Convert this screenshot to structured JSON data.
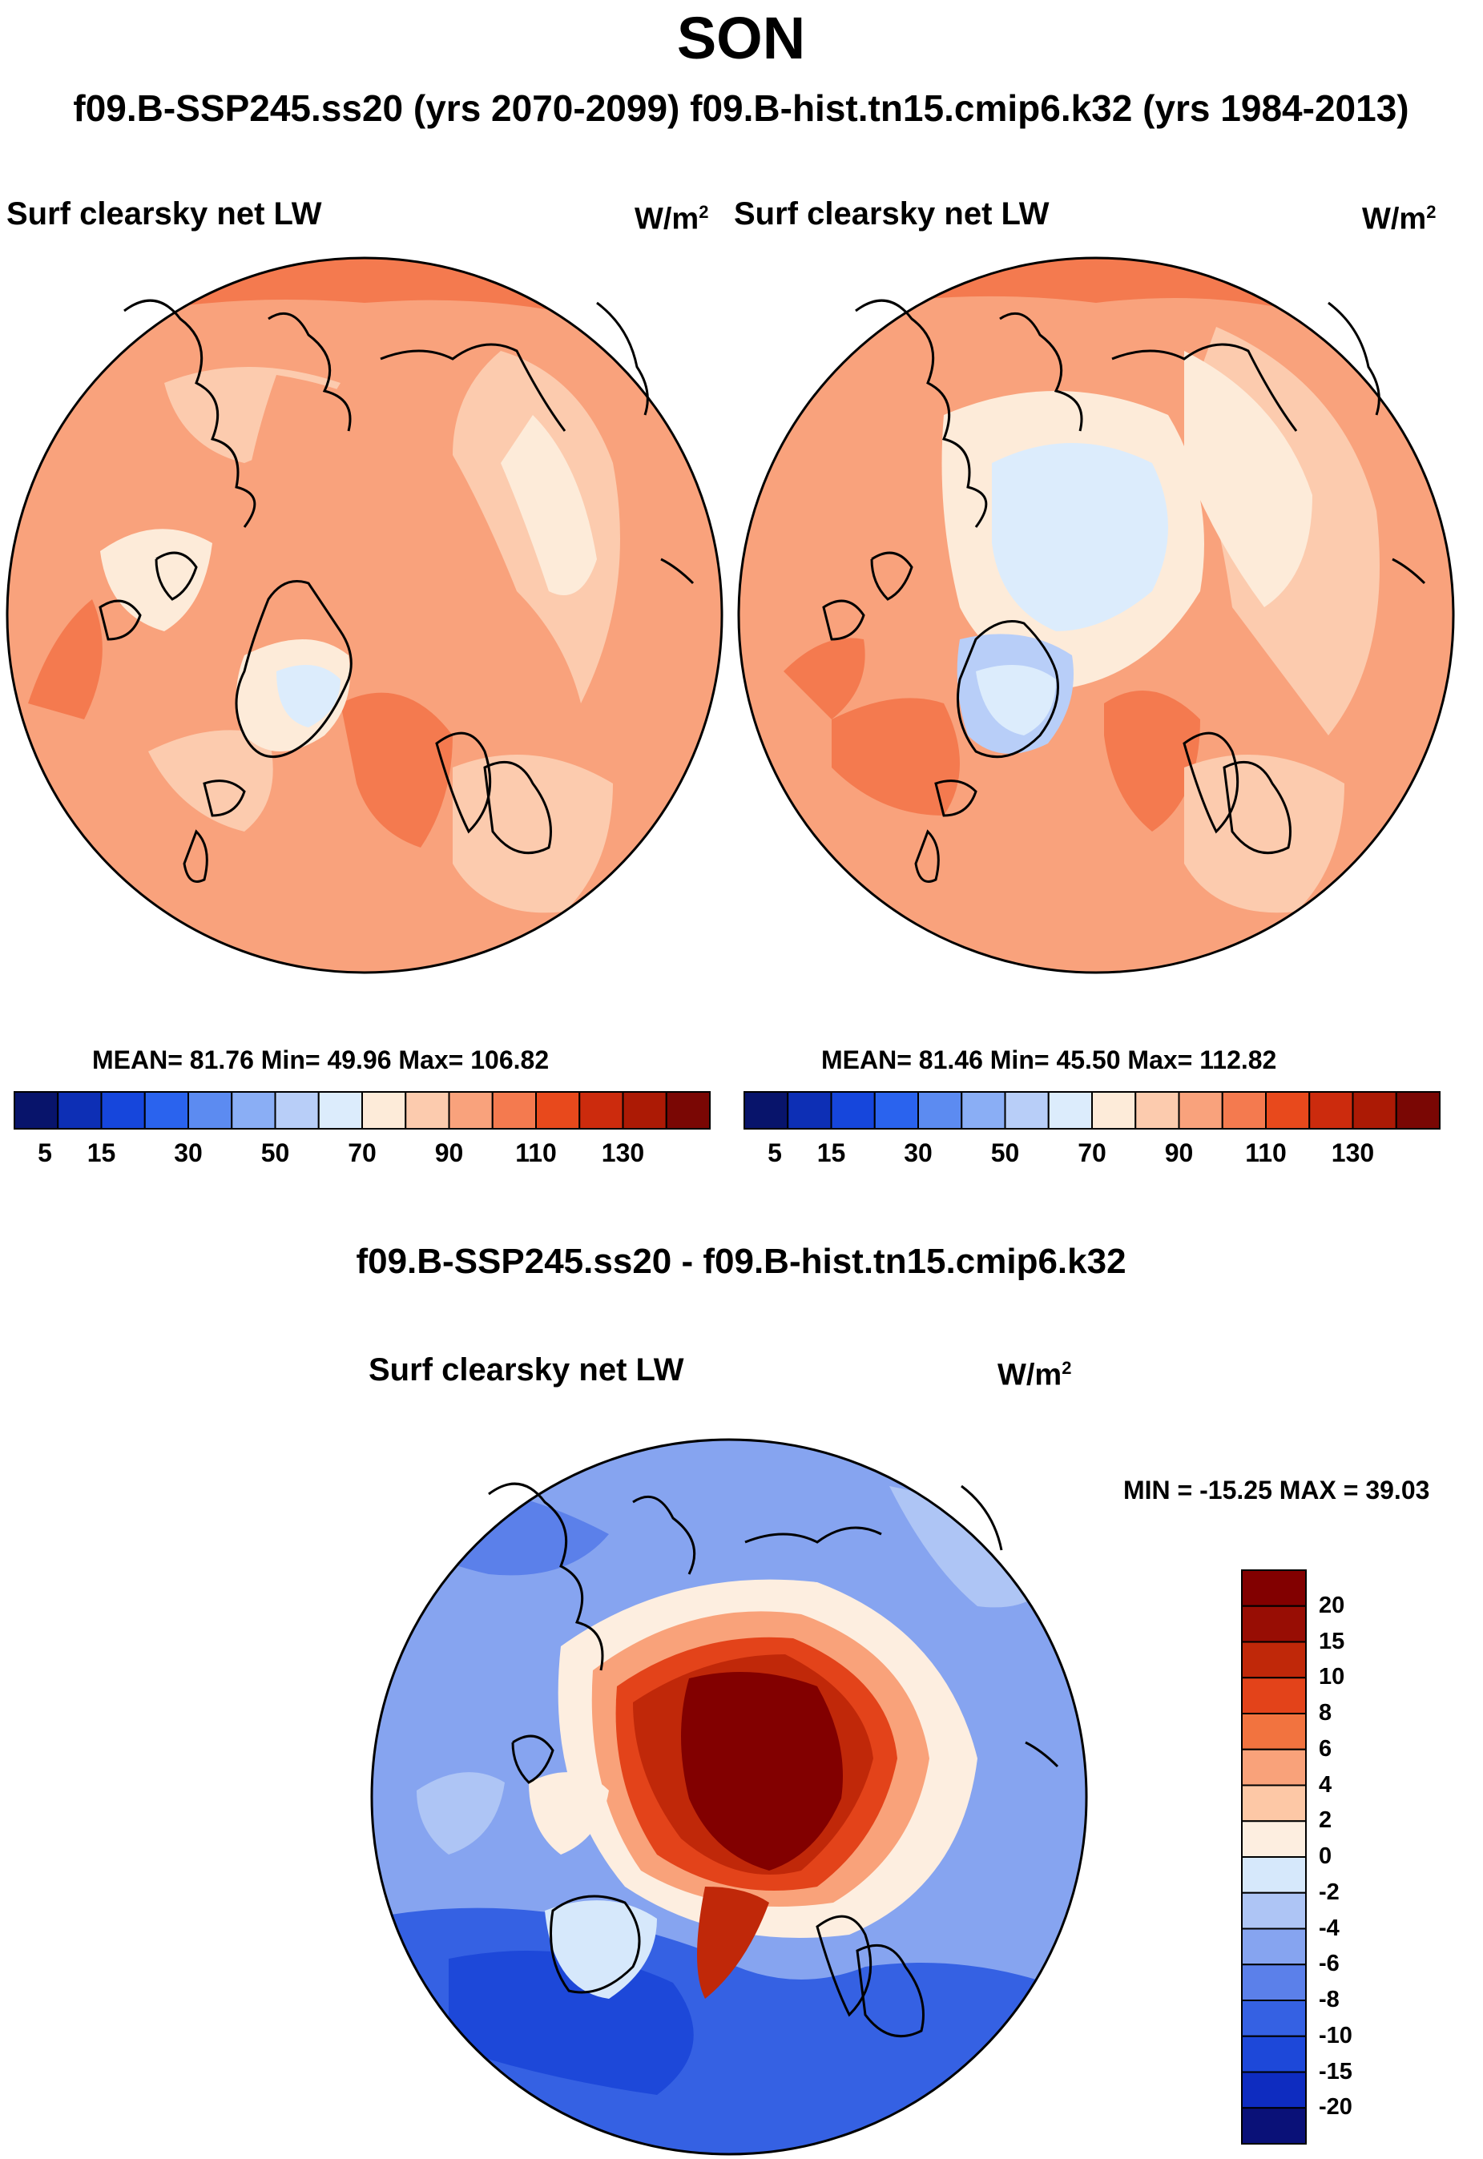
{
  "title": "SON",
  "subtitle": "f09.B-SSP245.ss20 (yrs 2070-2099)  f09.B-hist.tn15.cmip6.k32 (yrs 1984-2013)",
  "colors": {
    "abs_palette": [
      "#08146b",
      "#0d2fb5",
      "#1646dc",
      "#2a63ee",
      "#5c8bf1",
      "#8aaef5",
      "#b8cef8",
      "#dcecfc",
      "#fdebd9",
      "#fccbae",
      "#f9a27c",
      "#f47a4f",
      "#e8491c",
      "#cc2b0d",
      "#ac1a05",
      "#7a0704"
    ],
    "diff_palette": [
      "#0a1178",
      "#0e2cc0",
      "#1d48d9",
      "#3561e3",
      "#5b80ea",
      "#86a4f0",
      "#aec5f5",
      "#d6e8fb",
      "#fdeee0",
      "#fdc8a6",
      "#f9a27a",
      "#f2733f",
      "#e3431a",
      "#c02809",
      "#980d04",
      "#820000"
    ]
  },
  "panels": {
    "left": {
      "label": "Surf clearsky net LW",
      "units_base": "W/m",
      "units_exp": "2",
      "stats": "MEAN=  81.76  Min=  49.96  Max= 106.82",
      "colorbar_labels": [
        "5",
        "15",
        "30",
        "50",
        "70",
        "90",
        "110",
        "130"
      ]
    },
    "right": {
      "label": "Surf clearsky net LW",
      "units_base": "W/m",
      "units_exp": "2",
      "stats": "MEAN=  81.46  Min=  45.50  Max= 112.82",
      "colorbar_labels": [
        "5",
        "15",
        "30",
        "50",
        "70",
        "90",
        "110",
        "130"
      ]
    },
    "diff": {
      "header": "f09.B-SSP245.ss20 - f09.B-hist.tn15.cmip6.k32",
      "label": "Surf clearsky net LW",
      "units_base": "W/m",
      "units_exp": "2",
      "stats": "MIN = -15.25 MAX =  39.03",
      "colorbar_labels": [
        "20",
        "15",
        "10",
        "8",
        "6",
        "4",
        "2",
        "0",
        "-2",
        "-4",
        "-6",
        "-8",
        "-10",
        "-15",
        "-20"
      ]
    }
  }
}
